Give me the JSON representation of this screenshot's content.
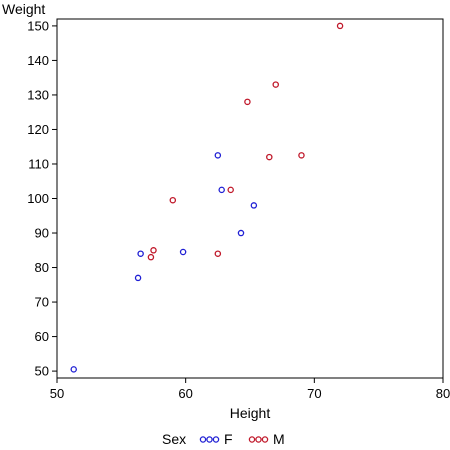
{
  "chart_data": {
    "type": "scatter",
    "title": "",
    "xlabel": "Height",
    "ylabel": "Weight",
    "xlim": [
      50,
      80
    ],
    "ylim": [
      48,
      152
    ],
    "xticks": [
      50,
      60,
      70,
      80
    ],
    "yticks": [
      50,
      60,
      70,
      80,
      90,
      100,
      110,
      120,
      130,
      140,
      150
    ],
    "grid": false,
    "legend": {
      "title": "Sex",
      "position": "bottom",
      "entries": [
        {
          "label": "F",
          "color": "#1f1fd4"
        },
        {
          "label": "M",
          "color": "#c0182a"
        }
      ]
    },
    "series": [
      {
        "name": "F",
        "color": "#1f1fd4",
        "points": [
          {
            "x": 51.3,
            "y": 50.5
          },
          {
            "x": 56.3,
            "y": 77.0
          },
          {
            "x": 56.5,
            "y": 84.0
          },
          {
            "x": 59.8,
            "y": 84.5
          },
          {
            "x": 62.5,
            "y": 112.5
          },
          {
            "x": 62.8,
            "y": 102.5
          },
          {
            "x": 64.3,
            "y": 90.0
          },
          {
            "x": 65.3,
            "y": 98.0
          }
        ]
      },
      {
        "name": "M",
        "color": "#c0182a",
        "points": [
          {
            "x": 57.3,
            "y": 83.0
          },
          {
            "x": 57.5,
            "y": 85.0
          },
          {
            "x": 59.0,
            "y": 99.5
          },
          {
            "x": 62.5,
            "y": 84.0
          },
          {
            "x": 63.5,
            "y": 102.5
          },
          {
            "x": 64.8,
            "y": 128.0
          },
          {
            "x": 66.5,
            "y": 112.0
          },
          {
            "x": 67.0,
            "y": 133.0
          },
          {
            "x": 69.0,
            "y": 112.5
          },
          {
            "x": 72.0,
            "y": 150.0
          }
        ]
      }
    ]
  }
}
